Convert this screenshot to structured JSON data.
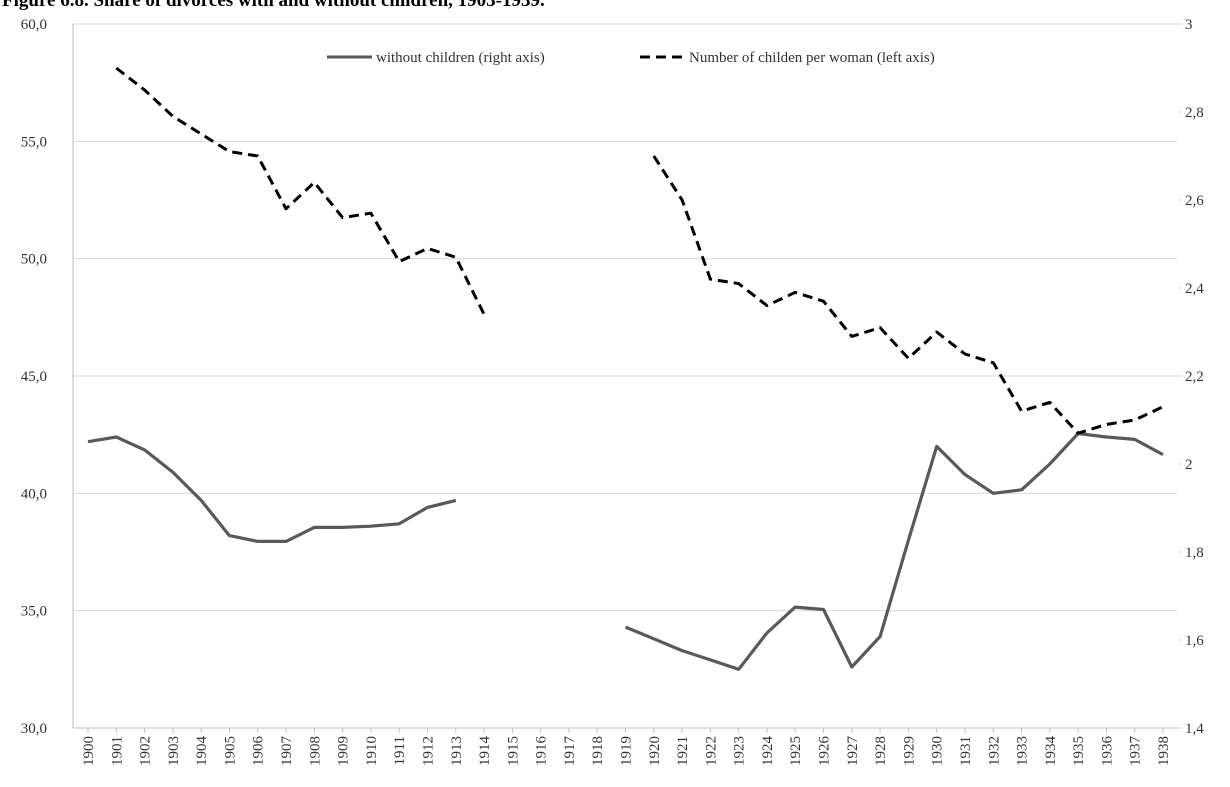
{
  "chart_data": {
    "type": "line",
    "title": "Figure 6.8. Share of divorces with and without children, 1903-1939.",
    "categories": [
      "1900",
      "1901",
      "1902",
      "1903",
      "1904",
      "1905",
      "1906",
      "1907",
      "1908",
      "1909",
      "1910",
      "1911",
      "1912",
      "1913",
      "1914",
      "1915",
      "1916",
      "1917",
      "1918",
      "1919",
      "1920",
      "1921",
      "1922",
      "1923",
      "1924",
      "1925",
      "1926",
      "1927",
      "1928",
      "1929",
      "1930",
      "1931",
      "1932",
      "1933",
      "1934",
      "1935",
      "1936",
      "1937",
      "1938"
    ],
    "series": [
      {
        "name": "without children (right axis)",
        "color": "#595959",
        "dash": false,
        "values": [
          42.2,
          42.4,
          41.85,
          40.9,
          39.7,
          38.2,
          37.95,
          37.95,
          38.55,
          38.55,
          38.6,
          38.7,
          39.4,
          39.7,
          null,
          null,
          null,
          null,
          null,
          34.3,
          33.8,
          33.3,
          32.9,
          32.5,
          34.05,
          35.15,
          35.05,
          32.6,
          33.9,
          38.0,
          42.0,
          40.8,
          40.0,
          40.15,
          41.25,
          42.55,
          42.4,
          42.3,
          41.65
        ]
      },
      {
        "name": "Number of childen per woman (left axis)",
        "color": "#000000",
        "dash": true,
        "axis": "y2",
        "values": [
          null,
          2.9,
          2.85,
          2.79,
          2.75,
          2.71,
          2.7,
          2.58,
          2.64,
          2.56,
          2.57,
          2.46,
          2.49,
          2.47,
          2.34,
          null,
          null,
          null,
          null,
          null,
          2.7,
          2.6,
          2.42,
          2.41,
          2.36,
          2.39,
          2.37,
          2.29,
          2.31,
          2.24,
          2.3,
          2.25,
          2.23,
          2.12,
          2.14,
          2.07,
          2.09,
          2.1,
          2.13
        ]
      }
    ],
    "ylim": [
      30,
      60
    ],
    "yticks": [
      {
        "value": 30,
        "label": "30,0"
      },
      {
        "value": 35,
        "label": "35,0"
      },
      {
        "value": 40,
        "label": "40,0"
      },
      {
        "value": 45,
        "label": "45,0"
      },
      {
        "value": 50,
        "label": "50,0"
      },
      {
        "value": 55,
        "label": "55,0"
      },
      {
        "value": 60,
        "label": "60,0"
      }
    ],
    "y2lim": [
      1.4,
      3
    ],
    "y2ticks": [
      {
        "value": 1.4,
        "label": "1,4"
      },
      {
        "value": 1.6,
        "label": "1,6"
      },
      {
        "value": 1.8,
        "label": "1,8"
      },
      {
        "value": 2,
        "label": "2"
      },
      {
        "value": 2.2,
        "label": "2,2"
      },
      {
        "value": 2.4,
        "label": "2,4"
      },
      {
        "value": 2.6,
        "label": "2,6"
      },
      {
        "value": 2.8,
        "label": "2,8"
      },
      3
    ],
    "grid": true,
    "legend": "top"
  }
}
